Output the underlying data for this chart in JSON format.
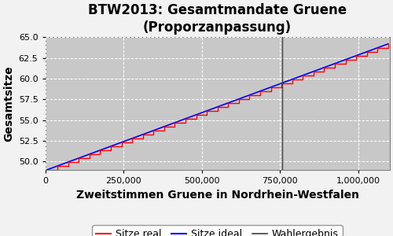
{
  "title": "BTW2013: Gesamtmandate Gruene\n(Proporzanpassung)",
  "xlabel": "Zweitstimmen Gruene in Nordrhein-Westfalen",
  "ylabel": "Gesamtsitze",
  "xlim": [
    0,
    1100000
  ],
  "ylim": [
    49.0,
    65.0
  ],
  "yticks": [
    50.0,
    52.5,
    55.0,
    57.5,
    60.0,
    62.5,
    65.0
  ],
  "xticks": [
    0,
    250000,
    500000,
    750000,
    1000000
  ],
  "wahlergebnis_x": 757000,
  "x_start": 5000,
  "x_end": 1095000,
  "y_start": 49.0,
  "y_end": 64.2,
  "n_steps": 32,
  "fig_bg_color": "#f2f2f2",
  "plot_bg_color": "#c8c8c8",
  "grid_color": "#ffffff",
  "line_real_color": "#ff0000",
  "line_ideal_color": "#0000ff",
  "wahlergebnis_color": "#404040",
  "legend_labels": [
    "Sitze real",
    "Sitze ideal",
    "Wahlergebnis"
  ],
  "title_fontsize": 12,
  "label_fontsize": 10,
  "tick_fontsize": 8,
  "legend_fontsize": 9
}
